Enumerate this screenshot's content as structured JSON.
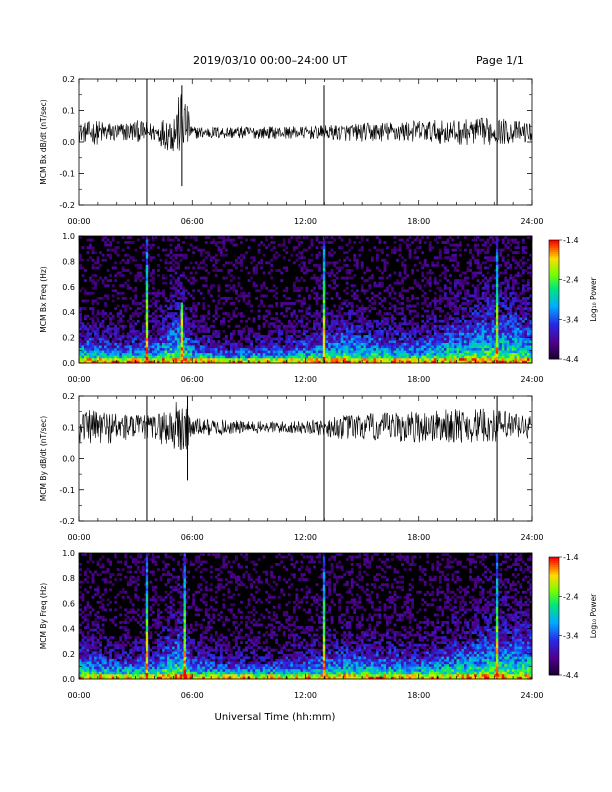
{
  "header": {
    "title": "2019/03/10  00:00–24:00 UT",
    "page": "Page 1/1"
  },
  "xlabel": "Universal Time (hh:mm)",
  "colorbar": {
    "label": "Log₁₀ Power",
    "ticks": [
      "-1.4",
      "-2.4",
      "-3.4",
      "-4.4"
    ],
    "range": [
      -4.4,
      -1.4
    ]
  },
  "chart_data": [
    {
      "type": "line",
      "ylabel": "MCM Bx dB/dt (nT/sec)",
      "x_range_hours": [
        0,
        24
      ],
      "x_ticks": [
        "00:00",
        "06:00",
        "12:00",
        "18:00",
        "24:00"
      ],
      "ylim": [
        -0.2,
        0.2
      ],
      "y_ticks": [
        "0.2",
        "0.1",
        "0.0",
        "-0.1",
        "-0.2"
      ],
      "baseline": 0.03,
      "envelope": [
        {
          "t": 0,
          "lo": 0.0,
          "hi": 0.06
        },
        {
          "t": 1,
          "lo": -0.01,
          "hi": 0.07
        },
        {
          "t": 2,
          "lo": 0.0,
          "hi": 0.06
        },
        {
          "t": 3,
          "lo": 0.0,
          "hi": 0.07
        },
        {
          "t": 4,
          "lo": 0.0,
          "hi": 0.06
        },
        {
          "t": 5,
          "lo": -0.04,
          "hi": 0.1
        },
        {
          "t": 5.5,
          "lo": -0.05,
          "hi": 0.18
        },
        {
          "t": 6,
          "lo": 0.01,
          "hi": 0.05
        },
        {
          "t": 9,
          "lo": 0.01,
          "hi": 0.05
        },
        {
          "t": 12,
          "lo": 0.01,
          "hi": 0.05
        },
        {
          "t": 15,
          "lo": 0.0,
          "hi": 0.06
        },
        {
          "t": 18,
          "lo": 0.0,
          "hi": 0.07
        },
        {
          "t": 20,
          "lo": -0.01,
          "hi": 0.07
        },
        {
          "t": 22,
          "lo": -0.01,
          "hi": 0.08
        },
        {
          "t": 24,
          "lo": 0.0,
          "hi": 0.06
        }
      ],
      "spikes": [
        {
          "t": 3.6,
          "lo": -0.2,
          "hi": 0.2
        },
        {
          "t": 5.45,
          "lo": -0.14,
          "hi": 0.18
        },
        {
          "t": 12.98,
          "lo": -0.2,
          "hi": 0.18
        },
        {
          "t": 22.15,
          "lo": -0.2,
          "hi": 0.2
        }
      ]
    },
    {
      "type": "heatmap",
      "ylabel": "MCM Bx Freq (Hz)",
      "x_range_hours": [
        0,
        24
      ],
      "x_ticks": [
        "00:00",
        "06:00",
        "12:00",
        "18:00",
        "24:00"
      ],
      "ylim": [
        0,
        1.0
      ],
      "y_ticks": [
        "1.0",
        "0.8",
        "0.6",
        "0.4",
        "0.2",
        "0.0"
      ],
      "activity": [
        {
          "t": 0,
          "level": 0.3
        },
        {
          "t": 2,
          "level": 0.22
        },
        {
          "t": 4,
          "level": 0.25
        },
        {
          "t": 5.3,
          "level": 0.55
        },
        {
          "t": 6,
          "level": 0.25
        },
        {
          "t": 8,
          "level": 0.15
        },
        {
          "t": 11,
          "level": 0.2
        },
        {
          "t": 14,
          "level": 0.35
        },
        {
          "t": 16,
          "level": 0.3
        },
        {
          "t": 18,
          "level": 0.25
        },
        {
          "t": 20,
          "level": 0.4
        },
        {
          "t": 22,
          "level": 0.55
        },
        {
          "t": 24,
          "level": 0.45
        }
      ],
      "spikes": [
        {
          "t": 3.6,
          "hi": 1.0
        },
        {
          "t": 5.45,
          "hi": 0.45
        },
        {
          "t": 12.98,
          "hi": 1.0
        },
        {
          "t": 22.15,
          "hi": 1.0
        }
      ]
    },
    {
      "type": "line",
      "ylabel": "MCM By dB/dt (nT/sec)",
      "x_range_hours": [
        0,
        24
      ],
      "x_ticks": [
        "00:00",
        "06:00",
        "12:00",
        "18:00",
        "24:00"
      ],
      "ylim": [
        -0.2,
        0.2
      ],
      "y_ticks": [
        "0.2",
        "0.1",
        "0.0",
        "-0.1",
        "-0.2"
      ],
      "baseline": 0.1,
      "envelope": [
        {
          "t": 0,
          "lo": 0.05,
          "hi": 0.15
        },
        {
          "t": 1,
          "lo": 0.04,
          "hi": 0.16
        },
        {
          "t": 2,
          "lo": 0.05,
          "hi": 0.15
        },
        {
          "t": 3,
          "lo": 0.06,
          "hi": 0.14
        },
        {
          "t": 4,
          "lo": 0.06,
          "hi": 0.14
        },
        {
          "t": 5,
          "lo": 0.02,
          "hi": 0.18
        },
        {
          "t": 5.6,
          "lo": -0.01,
          "hi": 0.2
        },
        {
          "t": 6,
          "lo": 0.07,
          "hi": 0.13
        },
        {
          "t": 9,
          "lo": 0.08,
          "hi": 0.12
        },
        {
          "t": 12,
          "lo": 0.08,
          "hi": 0.12
        },
        {
          "t": 14,
          "lo": 0.06,
          "hi": 0.14
        },
        {
          "t": 17,
          "lo": 0.05,
          "hi": 0.15
        },
        {
          "t": 20,
          "lo": 0.05,
          "hi": 0.16
        },
        {
          "t": 22,
          "lo": 0.05,
          "hi": 0.16
        },
        {
          "t": 24,
          "lo": 0.06,
          "hi": 0.14
        }
      ],
      "spikes": [
        {
          "t": 3.6,
          "lo": -0.2,
          "hi": 0.2
        },
        {
          "t": 5.75,
          "lo": -0.07,
          "hi": 0.2
        },
        {
          "t": 12.98,
          "lo": -0.2,
          "hi": 0.2
        },
        {
          "t": 22.15,
          "lo": -0.2,
          "hi": 0.2
        }
      ]
    },
    {
      "type": "heatmap",
      "ylabel": "MCM By Freq (Hz)",
      "x_range_hours": [
        0,
        24
      ],
      "x_ticks": [
        "00:00",
        "06:00",
        "12:00",
        "18:00",
        "24:00"
      ],
      "ylim": [
        0,
        1.0
      ],
      "y_ticks": [
        "1.0",
        "0.8",
        "0.6",
        "0.4",
        "0.2",
        "0.0"
      ],
      "activity": [
        {
          "t": 0,
          "level": 0.3
        },
        {
          "t": 2,
          "level": 0.22
        },
        {
          "t": 4,
          "level": 0.25
        },
        {
          "t": 5.3,
          "level": 0.55
        },
        {
          "t": 6,
          "level": 0.25
        },
        {
          "t": 8,
          "level": 0.18
        },
        {
          "t": 11,
          "level": 0.2
        },
        {
          "t": 14,
          "level": 0.3
        },
        {
          "t": 16,
          "level": 0.28
        },
        {
          "t": 18,
          "level": 0.25
        },
        {
          "t": 20,
          "level": 0.35
        },
        {
          "t": 22,
          "level": 0.5
        },
        {
          "t": 24,
          "level": 0.45
        }
      ],
      "spikes": [
        {
          "t": 3.6,
          "hi": 1.0
        },
        {
          "t": 5.6,
          "hi": 1.0
        },
        {
          "t": 12.98,
          "hi": 1.0
        },
        {
          "t": 22.15,
          "hi": 1.0
        }
      ]
    }
  ]
}
